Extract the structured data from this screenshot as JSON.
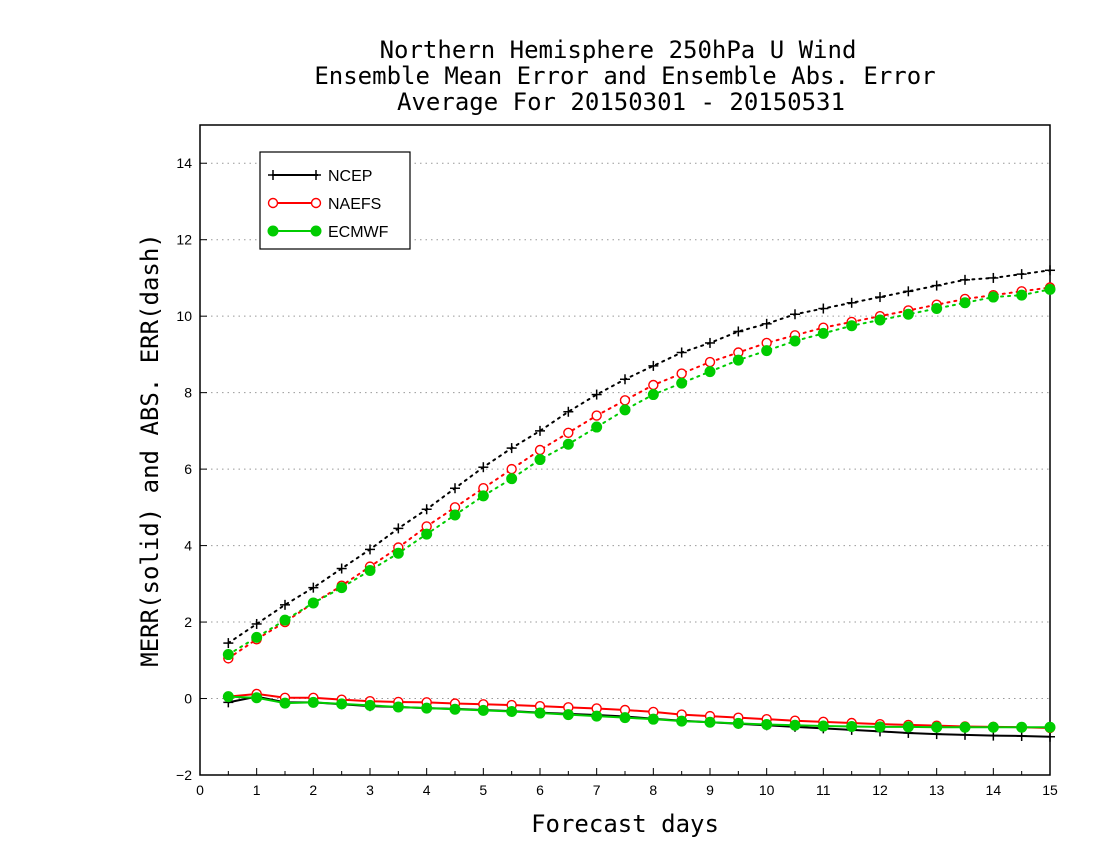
{
  "chart_data": {
    "type": "line",
    "title": [
      "Northern Hemisphere 250hPa U Wind",
      "Ensemble Mean Error and Ensemble Abs. Error",
      "Average For 20150301 - 20150531"
    ],
    "xlabel": "Forecast days",
    "ylabel": "MERR(solid) and ABS. ERR(dash)",
    "xlim": [
      0,
      15
    ],
    "ylim": [
      -2,
      15
    ],
    "x_ticks": [
      "0",
      "1",
      "2",
      "3",
      "4",
      "5",
      "6",
      "7",
      "8",
      "9",
      "10",
      "11",
      "12",
      "13",
      "14",
      "15"
    ],
    "y_ticks": [
      "-2",
      "0",
      "2",
      "4",
      "6",
      "8",
      "10",
      "12",
      "14"
    ],
    "grid": "horizontal dotted",
    "legend_position": "top-left",
    "x": [
      0.5,
      1,
      1.5,
      2,
      2.5,
      3,
      3.5,
      4,
      4.5,
      5,
      5.5,
      6,
      6.5,
      7,
      7.5,
      8,
      8.5,
      9,
      9.5,
      10,
      10.5,
      11,
      11.5,
      12,
      12.5,
      13,
      13.5,
      14,
      14.5,
      15
    ],
    "series": [
      {
        "name": "NCEP",
        "color": "#000000",
        "marker": "plus",
        "merr": [
          -0.1,
          0.05,
          -0.1,
          -0.1,
          -0.15,
          -0.2,
          -0.22,
          -0.25,
          -0.27,
          -0.3,
          -0.33,
          -0.37,
          -0.4,
          -0.43,
          -0.47,
          -0.53,
          -0.58,
          -0.62,
          -0.66,
          -0.7,
          -0.74,
          -0.78,
          -0.82,
          -0.86,
          -0.9,
          -0.93,
          -0.95,
          -0.97,
          -0.98,
          -1.0
        ],
        "abs_err": [
          1.45,
          1.95,
          2.45,
          2.9,
          3.4,
          3.9,
          4.45,
          4.95,
          5.5,
          6.05,
          6.55,
          7.0,
          7.5,
          7.95,
          8.35,
          8.7,
          9.05,
          9.3,
          9.6,
          9.8,
          10.05,
          10.2,
          10.35,
          10.5,
          10.65,
          10.8,
          10.95,
          11.0,
          11.1,
          11.2
        ]
      },
      {
        "name": "NAEFS",
        "color": "#ff0000",
        "marker": "open-circle",
        "merr": [
          0.05,
          0.12,
          0.02,
          0.02,
          -0.03,
          -0.07,
          -0.09,
          -0.1,
          -0.13,
          -0.15,
          -0.17,
          -0.2,
          -0.23,
          -0.26,
          -0.3,
          -0.35,
          -0.42,
          -0.46,
          -0.5,
          -0.54,
          -0.58,
          -0.61,
          -0.64,
          -0.67,
          -0.69,
          -0.71,
          -0.73,
          -0.74,
          -0.75,
          -0.77
        ],
        "abs_err": [
          1.05,
          1.55,
          2.0,
          2.5,
          2.95,
          3.45,
          3.95,
          4.5,
          5.0,
          5.5,
          6.0,
          6.5,
          6.95,
          7.4,
          7.8,
          8.2,
          8.5,
          8.8,
          9.05,
          9.3,
          9.5,
          9.7,
          9.85,
          10.0,
          10.15,
          10.3,
          10.45,
          10.55,
          10.65,
          10.75
        ]
      },
      {
        "name": "ECMWF",
        "color": "#00cc00",
        "marker": "filled-circle",
        "merr": [
          0.05,
          0.02,
          -0.12,
          -0.1,
          -0.14,
          -0.18,
          -0.22,
          -0.25,
          -0.28,
          -0.31,
          -0.34,
          -0.38,
          -0.42,
          -0.46,
          -0.5,
          -0.54,
          -0.59,
          -0.62,
          -0.65,
          -0.68,
          -0.7,
          -0.72,
          -0.73,
          -0.74,
          -0.74,
          -0.75,
          -0.75,
          -0.75,
          -0.75,
          -0.75
        ],
        "abs_err": [
          1.15,
          1.6,
          2.05,
          2.5,
          2.9,
          3.35,
          3.8,
          4.3,
          4.8,
          5.3,
          5.75,
          6.25,
          6.65,
          7.1,
          7.55,
          7.95,
          8.25,
          8.55,
          8.85,
          9.1,
          9.35,
          9.55,
          9.75,
          9.9,
          10.05,
          10.2,
          10.35,
          10.5,
          10.55,
          10.7
        ]
      }
    ]
  }
}
